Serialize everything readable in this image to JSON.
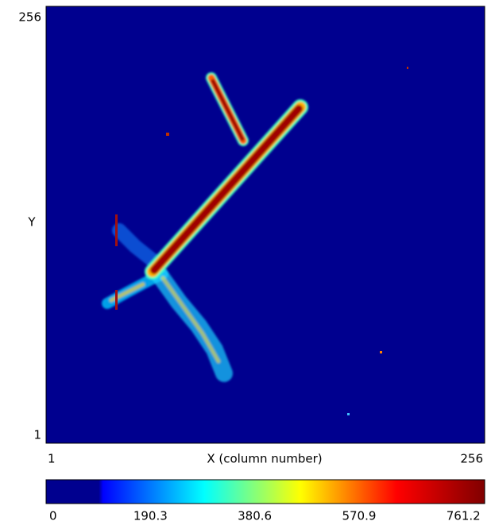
{
  "chart_data": {
    "type": "heatmap",
    "xlabel": "X (column number)",
    "ylabel": "Y",
    "xlim": [
      1,
      256
    ],
    "ylim": [
      1,
      256
    ],
    "xticks": [
      1,
      256
    ],
    "yticks": [
      1,
      256
    ],
    "colorbar": {
      "colormap": "jet",
      "clim": [
        0,
        800
      ],
      "ticks": [
        0,
        190.3,
        380.6,
        570.9,
        761.2
      ]
    },
    "background_color": "#00008f"
  }
}
